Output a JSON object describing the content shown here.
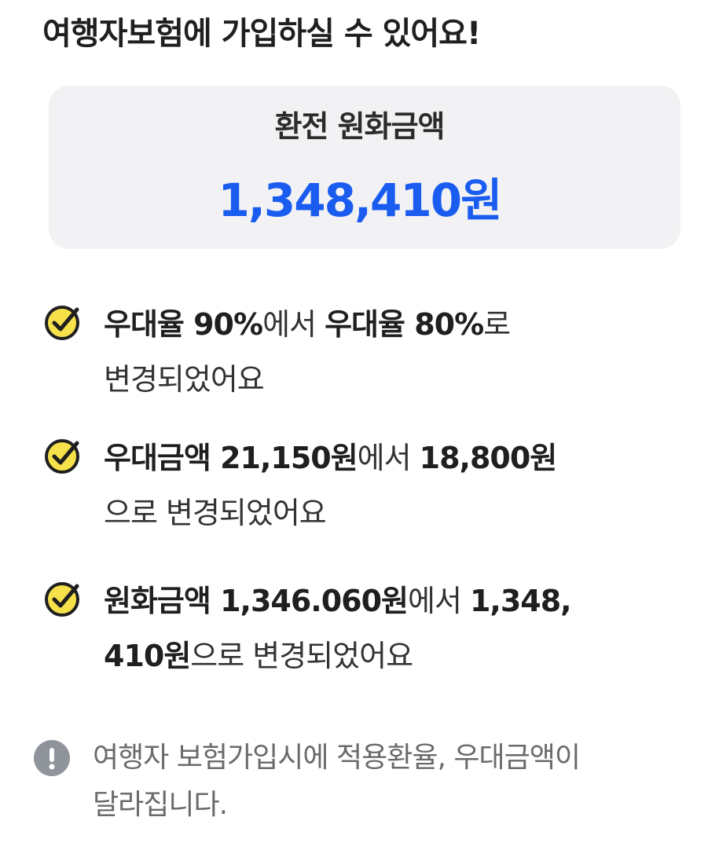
{
  "header": {
    "title": "여행자보험에 가입하실 수 있어요!"
  },
  "amount_card": {
    "label": "환전 원화금액",
    "value": "1,348,410원",
    "value_color": "#1a5cf0"
  },
  "changes": [
    {
      "icon": "check-circle-icon",
      "parts": [
        {
          "text": "우대율 90%",
          "bold": true
        },
        {
          "text": "에서 ",
          "bold": false
        },
        {
          "text": "우대율 80%",
          "bold": true
        },
        {
          "text": "로",
          "bold": false
        },
        {
          "text": "변경되었어요",
          "bold": false,
          "newline": true
        }
      ]
    },
    {
      "icon": "check-circle-icon",
      "parts": [
        {
          "text": "우대금액 21,150원",
          "bold": true
        },
        {
          "text": "에서 ",
          "bold": false
        },
        {
          "text": "18,800원",
          "bold": true
        },
        {
          "text": "으로 변경되었어요",
          "bold": false,
          "newline": true
        }
      ]
    },
    {
      "icon": "check-circle-icon",
      "parts": [
        {
          "text": "원화금액 1,346.060원",
          "bold": true
        },
        {
          "text": "에서 ",
          "bold": false
        },
        {
          "text": "1,348,",
          "bold": true
        },
        {
          "text": "410원",
          "bold": true,
          "newline": true
        },
        {
          "text": "으로 변경되었어요",
          "bold": false
        }
      ]
    }
  ],
  "notice": {
    "icon": "exclamation-circle-icon",
    "line1": "여행자 보험가입시에 적용환율, 우대금액이",
    "line2": "달라집니다."
  },
  "colors": {
    "check_fill": "#f7e14b",
    "check_stroke": "#1f1f1f",
    "notice_icon": "#8f939a"
  }
}
